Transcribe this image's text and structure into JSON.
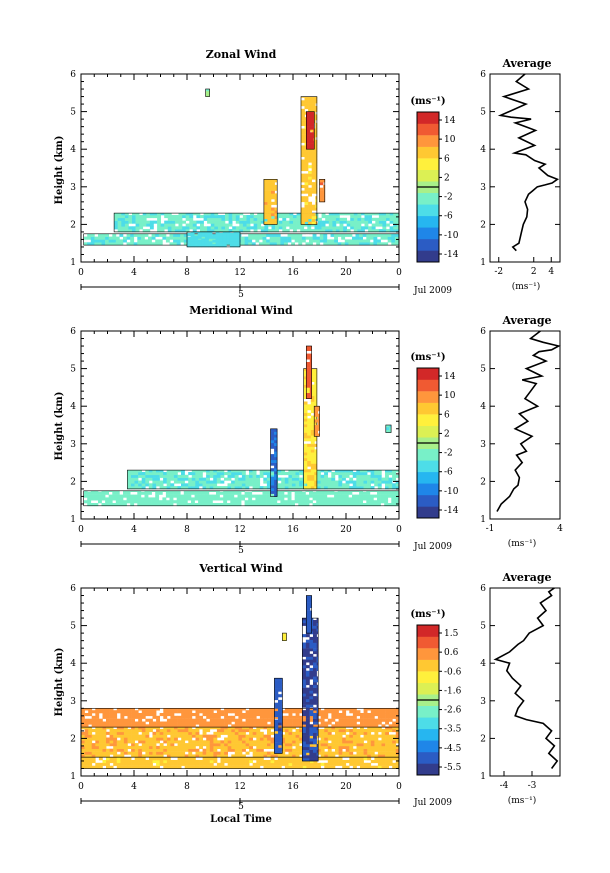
{
  "figure": {
    "common": {
      "date_label": "Jul 2009",
      "day_label": "5"
    },
    "colormap": [
      "#323c8c",
      "#2b5cc4",
      "#1f86e8",
      "#26b6f0",
      "#4ddde8",
      "#78f0c8",
      "#a8f08a",
      "#dcf054",
      "#fff03c",
      "#ffc832",
      "#ff963c",
      "#f05a32",
      "#d22828"
    ],
    "panels": [
      {
        "title": "Zonal Wind",
        "unit": "(ms⁻¹)",
        "x_ticks": [
          "0",
          "4",
          "8",
          "12",
          "16",
          "20",
          "0"
        ],
        "y_ticks": [
          "1",
          "2",
          "3",
          "4",
          "5",
          "6"
        ],
        "ylabel": "Height (km)",
        "colorbar_ticks": [
          "14",
          "10",
          "6",
          "2",
          "-2",
          "-6",
          "-10",
          "-14"
        ],
        "profile_title": "Average",
        "profile_x_ticks": [
          "-2",
          "2",
          "4"
        ],
        "profile_unit": "(ms⁻¹)"
      },
      {
        "title": "Meridional Wind",
        "unit": "(ms⁻¹)",
        "x_ticks": [
          "0",
          "4",
          "8",
          "12",
          "16",
          "20",
          "0"
        ],
        "y_ticks": [
          "1",
          "2",
          "3",
          "4",
          "5",
          "6"
        ],
        "ylabel": "Height (km)",
        "colorbar_ticks": [
          "14",
          "10",
          "6",
          "2",
          "-2",
          "-6",
          "-10",
          "-14"
        ],
        "profile_title": "Average",
        "profile_x_ticks": [
          "-1",
          "4"
        ],
        "profile_unit": "(ms⁻¹)"
      },
      {
        "title": "Vertical Wind",
        "unit": "(ms⁻¹)",
        "x_ticks": [
          "0",
          "4",
          "8",
          "12",
          "16",
          "20",
          "0"
        ],
        "y_ticks": [
          "1",
          "2",
          "3",
          "4",
          "5",
          "6"
        ],
        "ylabel": "Height (km)",
        "colorbar_ticks": [
          "1.5",
          "0.6",
          "-0.6",
          "-1.6",
          "-2.6",
          "-3.5",
          "-4.5",
          "-5.5"
        ],
        "profile_title": "Average",
        "profile_x_ticks": [
          "-4",
          "-3"
        ],
        "profile_unit": "(ms⁻¹)",
        "xlabel": "Local Time"
      }
    ]
  },
  "chart_data": [
    {
      "type": "heatmap",
      "title": "Zonal Wind",
      "xlabel": "",
      "ylabel": "Height (km)",
      "xlim": [
        0,
        24
      ],
      "ylim": [
        1,
        6
      ],
      "x_tick_labels": [
        "0",
        "4",
        "8",
        "12",
        "16",
        "20",
        "0"
      ],
      "colorbar": {
        "min": -14,
        "max": 14,
        "ticks": [
          14,
          10,
          6,
          2,
          -2,
          -6,
          -10,
          -14
        ],
        "units": "(ms⁻¹)"
      },
      "blobs": [
        {
          "x": [
            0.2,
            24
          ],
          "y": [
            1.45,
            1.75
          ],
          "value": -3
        },
        {
          "x": [
            2.5,
            24
          ],
          "y": [
            1.8,
            2.3
          ],
          "value": -3
        },
        {
          "x": [
            8.0,
            12.0
          ],
          "y": [
            1.4,
            1.8
          ],
          "value": -4
        },
        {
          "x": [
            13.8,
            14.8
          ],
          "y": [
            2.0,
            3.2
          ],
          "value": 7
        },
        {
          "x": [
            16.6,
            17.8
          ],
          "y": [
            2.0,
            5.4
          ],
          "value": 6
        },
        {
          "x": [
            17.0,
            17.6
          ],
          "y": [
            4.0,
            5.0
          ],
          "value": 13
        },
        {
          "x": [
            18.0,
            18.4
          ],
          "y": [
            2.6,
            3.2
          ],
          "value": 9
        },
        {
          "x": [
            9.4,
            9.7
          ],
          "y": [
            5.4,
            5.6
          ],
          "value": -1
        }
      ],
      "profile": {
        "title": "Average",
        "x_tick_labels": [
          "-2",
          "2",
          "4"
        ],
        "xlim": [
          -3,
          5
        ],
        "ylim": [
          1,
          6
        ],
        "x": [
          0.0,
          -0.4,
          0.3,
          0.6,
          0.8,
          1.2,
          1.3,
          1.0,
          1.4,
          1.9,
          2.4,
          3.3,
          4.1,
          4.7,
          3.6,
          2.6,
          3.3,
          2.1,
          1.1,
          -0.2,
          2.1,
          0.3,
          2.2,
          -0.1,
          1.7,
          -0.6,
          -1.8,
          1.1,
          -1.4,
          1.4,
          0.0,
          1.0
        ],
        "y": [
          1.3,
          1.4,
          1.5,
          1.8,
          2.0,
          2.2,
          2.4,
          2.6,
          2.8,
          2.9,
          3.0,
          3.05,
          3.1,
          3.2,
          3.3,
          3.5,
          3.6,
          3.7,
          3.85,
          3.9,
          4.1,
          4.3,
          4.5,
          4.7,
          4.8,
          4.85,
          4.9,
          5.2,
          5.4,
          5.6,
          5.8,
          6.0
        ]
      }
    },
    {
      "type": "heatmap",
      "title": "Meridional Wind",
      "xlabel": "",
      "ylabel": "Height (km)",
      "xlim": [
        0,
        24
      ],
      "ylim": [
        1,
        6
      ],
      "x_tick_labels": [
        "0",
        "4",
        "8",
        "12",
        "16",
        "20",
        "0"
      ],
      "colorbar": {
        "min": -14,
        "max": 14,
        "ticks": [
          14,
          10,
          6,
          2,
          -2,
          -6,
          -10,
          -14
        ],
        "units": "(ms⁻¹)"
      },
      "blobs": [
        {
          "x": [
            0.2,
            24
          ],
          "y": [
            1.35,
            1.75
          ],
          "value": -2
        },
        {
          "x": [
            3.5,
            24
          ],
          "y": [
            1.8,
            2.3
          ],
          "value": -3
        },
        {
          "x": [
            14.3,
            14.8
          ],
          "y": [
            1.6,
            3.4
          ],
          "value": -10
        },
        {
          "x": [
            16.8,
            17.8
          ],
          "y": [
            1.8,
            5.0
          ],
          "value": 5
        },
        {
          "x": [
            17.0,
            17.4
          ],
          "y": [
            4.2,
            5.6
          ],
          "value": 11
        },
        {
          "x": [
            17.6,
            18.0
          ],
          "y": [
            3.2,
            4.0
          ],
          "value": 9
        },
        {
          "x": [
            23.0,
            23.4
          ],
          "y": [
            3.3,
            3.5
          ],
          "value": -3
        }
      ],
      "profile": {
        "title": "Average",
        "x_tick_labels": [
          "-1",
          "4"
        ],
        "xlim": [
          -1,
          4
        ],
        "ylim": [
          1,
          6
        ],
        "x": [
          -0.5,
          -0.2,
          0.4,
          0.7,
          1.0,
          1.1,
          0.8,
          1.3,
          0.9,
          1.6,
          1.2,
          2.0,
          0.8,
          1.7,
          1.1,
          2.4,
          1.5,
          1.9,
          2.3,
          1.3,
          2.7,
          1.6,
          3.0,
          2.1,
          2.5,
          3.4,
          3.9,
          2.8,
          1.9,
          2.6
        ],
        "y": [
          1.2,
          1.4,
          1.6,
          1.8,
          1.9,
          2.1,
          2.3,
          2.5,
          2.7,
          2.8,
          3.0,
          3.2,
          3.4,
          3.6,
          3.8,
          4.0,
          4.2,
          4.4,
          4.6,
          4.7,
          4.8,
          5.0,
          5.2,
          5.35,
          5.45,
          5.5,
          5.6,
          5.7,
          5.8,
          6.0
        ]
      }
    },
    {
      "type": "heatmap",
      "title": "Vertical Wind",
      "xlabel": "Local Time",
      "ylabel": "Height (km)",
      "xlim": [
        0,
        24
      ],
      "ylim": [
        1,
        6
      ],
      "x_tick_labels": [
        "0",
        "4",
        "8",
        "12",
        "16",
        "20",
        "0"
      ],
      "colorbar": {
        "min": -5.5,
        "max": 1.5,
        "ticks": [
          1.5,
          0.6,
          -0.6,
          -1.6,
          -2.6,
          -3.5,
          -4.5,
          -5.5
        ],
        "units": "(ms⁻¹)"
      },
      "blobs": [
        {
          "x": [
            0.0,
            24
          ],
          "y": [
            1.5,
            2.3
          ],
          "value": -0.2
        },
        {
          "x": [
            0.0,
            24
          ],
          "y": [
            2.3,
            2.8
          ],
          "value": 0.2
        },
        {
          "x": [
            0.0,
            24
          ],
          "y": [
            1.2,
            1.5
          ],
          "value": -0.5
        },
        {
          "x": [
            14.6,
            15.2
          ],
          "y": [
            1.6,
            3.6
          ],
          "value": -4.8
        },
        {
          "x": [
            16.7,
            17.9
          ],
          "y": [
            1.4,
            5.2
          ],
          "value": -5.0
        },
        {
          "x": [
            17.0,
            17.4
          ],
          "y": [
            4.8,
            5.8
          ],
          "value": -4.6
        },
        {
          "x": [
            15.2,
            15.5
          ],
          "y": [
            4.6,
            4.8
          ],
          "value": -1.0
        }
      ],
      "profile": {
        "title": "Average",
        "x_tick_labels": [
          "-4",
          "-3"
        ],
        "xlim": [
          -4.5,
          -2.0
        ],
        "ylim": [
          1,
          6
        ],
        "x": [
          -2.3,
          -2.1,
          -2.4,
          -2.2,
          -2.5,
          -2.3,
          -2.6,
          -3.2,
          -3.6,
          -3.5,
          -3.3,
          -3.6,
          -3.4,
          -3.7,
          -3.9,
          -3.8,
          -4.3,
          -3.8,
          -3.5,
          -3.3,
          -3.1,
          -2.6,
          -2.8,
          -2.5,
          -2.7,
          -2.3,
          -2.4,
          -2.2
        ],
        "y": [
          1.2,
          1.4,
          1.6,
          1.8,
          2.0,
          2.2,
          2.4,
          2.5,
          2.6,
          2.8,
          3.0,
          3.2,
          3.4,
          3.6,
          3.8,
          4.0,
          4.1,
          4.3,
          4.5,
          4.6,
          4.8,
          5.0,
          5.2,
          5.4,
          5.6,
          5.8,
          5.9,
          6.0
        ]
      }
    }
  ]
}
